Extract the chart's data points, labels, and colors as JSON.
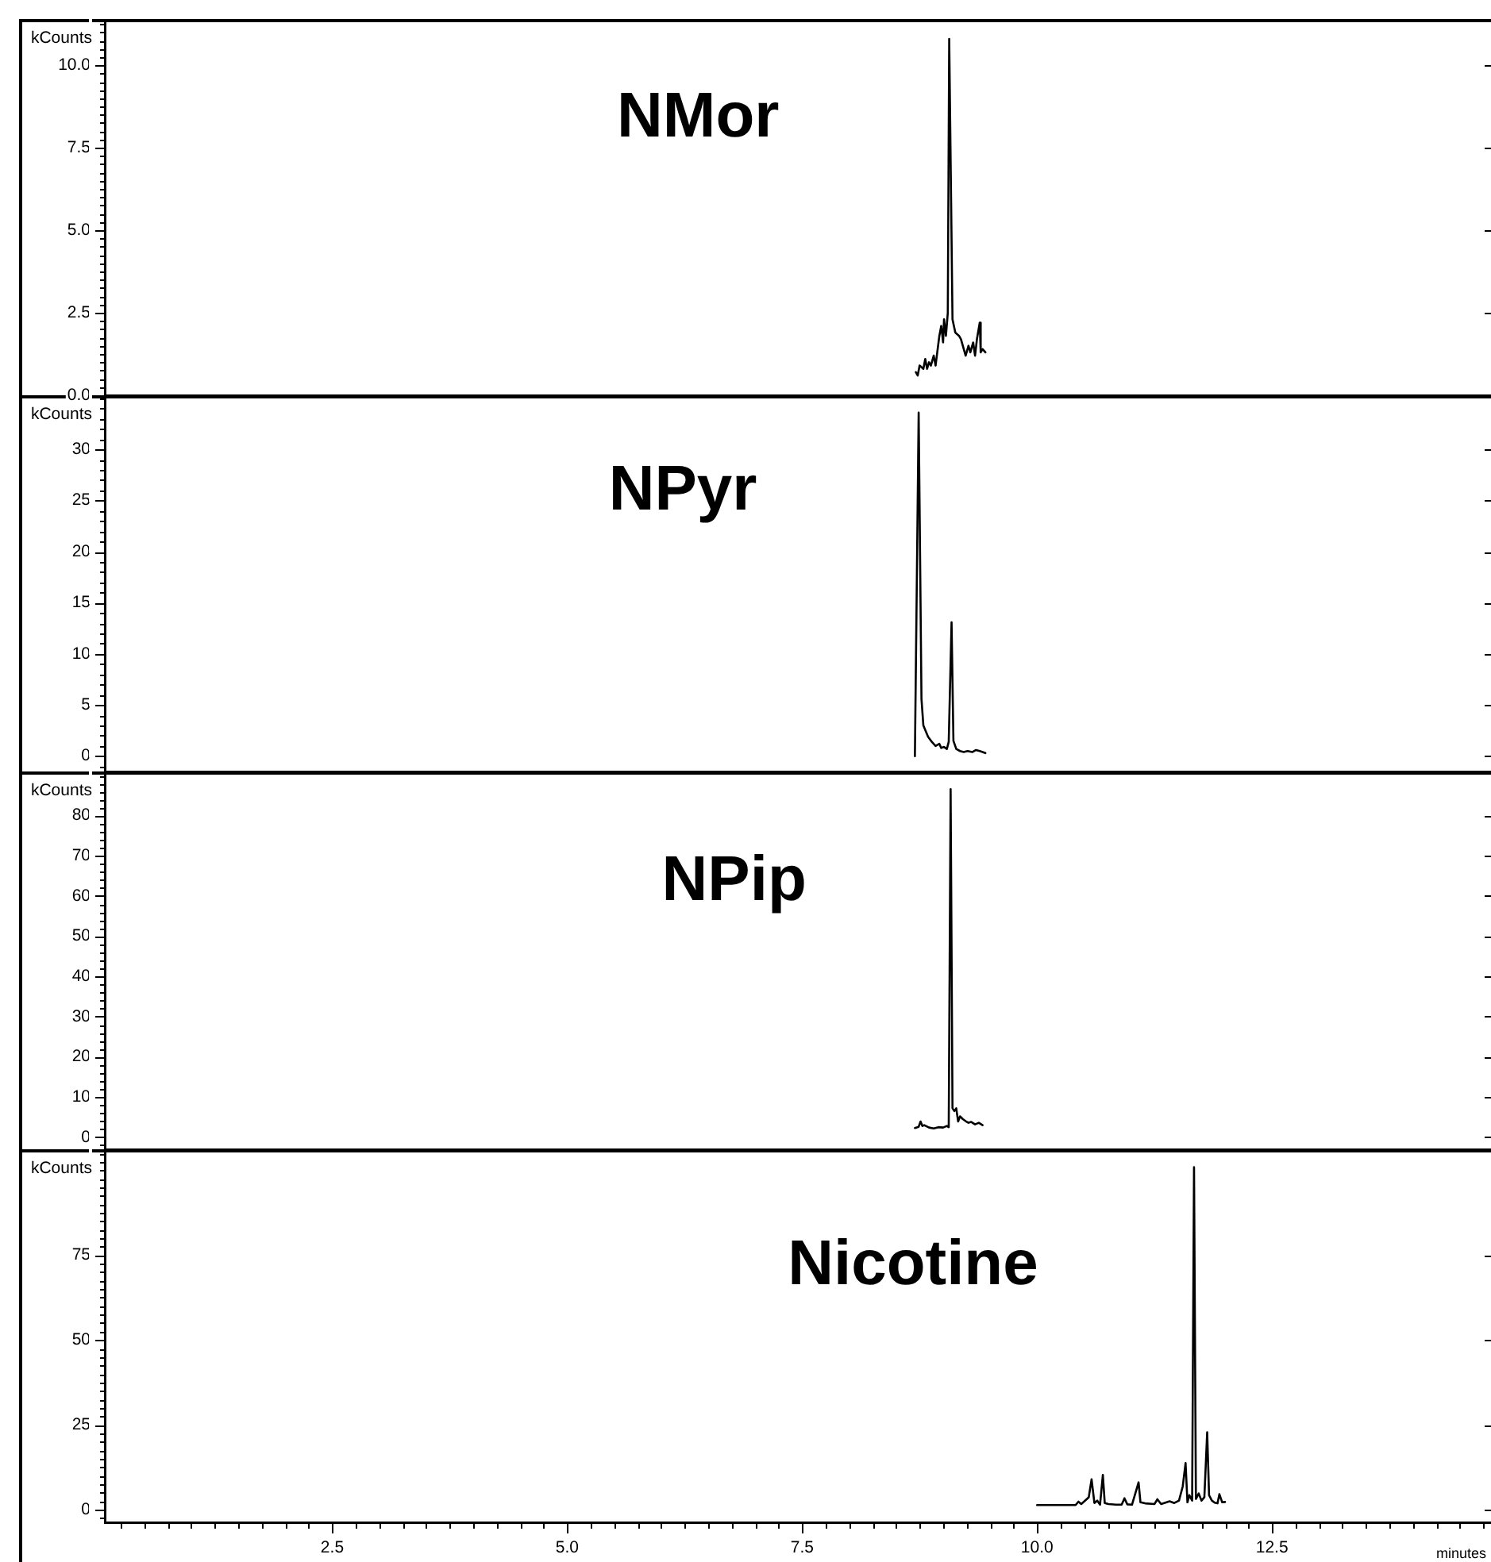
{
  "chart_data": [
    {
      "type": "line",
      "title": "NMor",
      "ylabel": "kCounts",
      "color": "#000000",
      "marker": "none",
      "tick_labels": "y",
      "xlim": [
        0.08,
        14.83
      ],
      "ylim": [
        0,
        11.4
      ],
      "yticks": [
        {
          "value": 0,
          "label": "0.0"
        },
        {
          "value": 0.25,
          "label": null
        },
        {
          "value": 0.5,
          "label": null
        },
        {
          "value": 0.75,
          "label": null
        },
        {
          "value": 1,
          "label": null
        },
        {
          "value": 1.25,
          "label": null
        },
        {
          "value": 1.5,
          "label": null
        },
        {
          "value": 1.75,
          "label": null
        },
        {
          "value": 2,
          "label": null
        },
        {
          "value": 2.25,
          "label": null
        },
        2.5,
        {
          "value": 2.75,
          "label": null
        },
        {
          "value": 3,
          "label": null
        },
        {
          "value": 3.25,
          "label": null
        },
        {
          "value": 3.5,
          "label": null
        },
        {
          "value": 3.75,
          "label": null
        },
        {
          "value": 4,
          "label": null
        },
        {
          "value": 4.25,
          "label": null
        },
        {
          "value": 4.5,
          "label": null
        },
        {
          "value": 4.75,
          "label": null
        },
        {
          "value": 5,
          "label": "5.0"
        },
        {
          "value": 5.25,
          "label": null
        },
        {
          "value": 5.5,
          "label": null
        },
        {
          "value": 5.75,
          "label": null
        },
        {
          "value": 6,
          "label": null
        },
        {
          "value": 6.25,
          "label": null
        },
        {
          "value": 6.5,
          "label": null
        },
        {
          "value": 6.75,
          "label": null
        },
        {
          "value": 7,
          "label": null
        },
        {
          "value": 7.25,
          "label": null
        },
        7.5,
        {
          "value": 7.75,
          "label": null
        },
        {
          "value": 8,
          "label": null
        },
        {
          "value": 8.25,
          "label": null
        },
        {
          "value": 8.5,
          "label": null
        },
        {
          "value": 8.75,
          "label": null
        },
        {
          "value": 9,
          "label": null
        },
        {
          "value": 9.25,
          "label": null
        },
        {
          "value": 9.5,
          "label": null
        },
        {
          "value": 9.75,
          "label": null
        },
        {
          "value": 10,
          "label": "10.0"
        },
        {
          "value": 10.25,
          "label": null
        },
        {
          "value": 10.5,
          "label": null
        },
        {
          "value": 10.75,
          "label": null
        },
        {
          "value": 11,
          "label": null
        },
        {
          "value": 11.25,
          "label": null
        }
      ],
      "x": [
        8.71,
        8.73,
        8.75,
        8.79,
        8.81,
        8.83,
        8.85,
        8.87,
        8.9,
        8.92,
        8.96,
        8.98,
        9.0,
        9.01,
        9.03,
        9.05,
        9.065,
        9.1,
        9.13,
        9.17,
        9.19,
        9.24,
        9.27,
        9.29,
        9.32,
        9.34,
        9.36,
        9.39,
        9.4,
        9.42,
        9.45
      ],
      "values": [
        0.7,
        0.6,
        0.9,
        0.8,
        1.1,
        0.8,
        1.0,
        0.9,
        1.2,
        0.9,
        1.8,
        2.1,
        1.6,
        2.3,
        1.8,
        2.5,
        10.8,
        2.3,
        1.9,
        1.8,
        1.7,
        1.2,
        1.5,
        1.3,
        1.6,
        1.2,
        1.7,
        2.2,
        1.3,
        1.4,
        1.3
      ]
    },
    {
      "type": "line",
      "title": "NPyr",
      "ylabel": "kCounts",
      "color": "#000000",
      "marker": "none",
      "tick_labels": "y",
      "xlim": [
        0.08,
        14.83
      ],
      "ylim": [
        -1.5,
        35.3
      ],
      "yticks": [
        {
          "value": -1,
          "label": null
        },
        0,
        {
          "value": 1,
          "label": null
        },
        {
          "value": 2,
          "label": null
        },
        {
          "value": 3,
          "label": null
        },
        {
          "value": 4,
          "label": null
        },
        5,
        {
          "value": 6,
          "label": null
        },
        {
          "value": 7,
          "label": null
        },
        {
          "value": 8,
          "label": null
        },
        {
          "value": 9,
          "label": null
        },
        10,
        {
          "value": 11,
          "label": null
        },
        {
          "value": 12,
          "label": null
        },
        {
          "value": 13,
          "label": null
        },
        {
          "value": 14,
          "label": null
        },
        15,
        {
          "value": 16,
          "label": null
        },
        {
          "value": 17,
          "label": null
        },
        {
          "value": 18,
          "label": null
        },
        {
          "value": 19,
          "label": null
        },
        20,
        {
          "value": 21,
          "label": null
        },
        {
          "value": 22,
          "label": null
        },
        {
          "value": 23,
          "label": null
        },
        {
          "value": 24,
          "label": null
        },
        25,
        {
          "value": 26,
          "label": null
        },
        {
          "value": 27,
          "label": null
        },
        {
          "value": 28,
          "label": null
        },
        {
          "value": 29,
          "label": null
        },
        30,
        {
          "value": 31,
          "label": null
        },
        {
          "value": 32,
          "label": null
        },
        {
          "value": 33,
          "label": null
        },
        {
          "value": 34,
          "label": null
        },
        {
          "value": 35,
          "label": null
        }
      ],
      "x": [
        8.7,
        8.74,
        8.77,
        8.79,
        8.84,
        8.88,
        8.92,
        8.96,
        8.98,
        9.01,
        9.04,
        9.06,
        9.09,
        9.11,
        9.14,
        9.18,
        9.22,
        9.26,
        9.31,
        9.35,
        9.39,
        9.45
      ],
      "values": [
        0,
        33.6,
        5.6,
        3.0,
        1.9,
        1.4,
        1.0,
        1.2,
        0.8,
        0.9,
        0.7,
        1.4,
        13.1,
        1.5,
        0.7,
        0.5,
        0.4,
        0.5,
        0.4,
        0.6,
        0.5,
        0.3
      ]
    },
    {
      "type": "line",
      "title": "NPip",
      "ylabel": "kCounts",
      "color": "#000000",
      "marker": "none",
      "tick_labels": "y",
      "xlim": [
        0.08,
        14.83
      ],
      "ylim": [
        -3,
        91
      ],
      "yticks": [
        {
          "value": -2,
          "label": null
        },
        0,
        {
          "value": 2,
          "label": null
        },
        {
          "value": 4,
          "label": null
        },
        {
          "value": 6,
          "label": null
        },
        {
          "value": 8,
          "label": null
        },
        10,
        {
          "value": 12,
          "label": null
        },
        {
          "value": 14,
          "label": null
        },
        {
          "value": 16,
          "label": null
        },
        {
          "value": 18,
          "label": null
        },
        20,
        {
          "value": 22,
          "label": null
        },
        {
          "value": 24,
          "label": null
        },
        {
          "value": 26,
          "label": null
        },
        {
          "value": 28,
          "label": null
        },
        30,
        {
          "value": 32,
          "label": null
        },
        {
          "value": 34,
          "label": null
        },
        {
          "value": 36,
          "label": null
        },
        {
          "value": 38,
          "label": null
        },
        40,
        {
          "value": 42,
          "label": null
        },
        {
          "value": 44,
          "label": null
        },
        {
          "value": 46,
          "label": null
        },
        {
          "value": 48,
          "label": null
        },
        50,
        {
          "value": 52,
          "label": null
        },
        {
          "value": 54,
          "label": null
        },
        {
          "value": 56,
          "label": null
        },
        {
          "value": 58,
          "label": null
        },
        60,
        {
          "value": 62,
          "label": null
        },
        {
          "value": 64,
          "label": null
        },
        {
          "value": 66,
          "label": null
        },
        {
          "value": 68,
          "label": null
        },
        70,
        {
          "value": 72,
          "label": null
        },
        {
          "value": 74,
          "label": null
        },
        {
          "value": 76,
          "label": null
        },
        {
          "value": 78,
          "label": null
        },
        80,
        {
          "value": 82,
          "label": null
        },
        {
          "value": 84,
          "label": null
        },
        {
          "value": 86,
          "label": null
        },
        {
          "value": 88,
          "label": null
        },
        {
          "value": 90,
          "label": null
        }
      ],
      "x": [
        8.7,
        8.74,
        8.76,
        8.78,
        8.8,
        8.85,
        8.9,
        8.95,
        9.0,
        9.04,
        9.06,
        9.08,
        9.1,
        9.12,
        9.14,
        9.16,
        9.18,
        9.21,
        9.24,
        9.27,
        9.3,
        9.34,
        9.38,
        9.42
      ],
      "values": [
        2.3,
        2.6,
        3.9,
        2.8,
        3.0,
        2.4,
        2.2,
        2.5,
        2.4,
        2.8,
        2.5,
        86.6,
        7.2,
        6.5,
        7.2,
        3.9,
        5.2,
        4.5,
        4.0,
        3.6,
        3.8,
        3.2,
        3.6,
        3.0
      ]
    },
    {
      "type": "line",
      "title": "Nicotine",
      "ylabel": "kCounts",
      "xlabel": "minutes",
      "color": "#000000",
      "marker": "none",
      "xlim": [
        0.08,
        14.83
      ],
      "ylim": [
        -3.8,
        106.3
      ],
      "xticks": [
        {
          "value": 0.25,
          "label": null
        },
        {
          "value": 0.5,
          "label": null
        },
        {
          "value": 0.75,
          "label": null
        },
        {
          "value": 1,
          "label": null
        },
        {
          "value": 1.25,
          "label": null
        },
        {
          "value": 1.5,
          "label": null
        },
        {
          "value": 1.75,
          "label": null
        },
        {
          "value": 2,
          "label": null
        },
        {
          "value": 2.25,
          "label": null
        },
        2.5,
        {
          "value": 2.75,
          "label": null
        },
        {
          "value": 3,
          "label": null
        },
        {
          "value": 3.25,
          "label": null
        },
        {
          "value": 3.5,
          "label": null
        },
        {
          "value": 3.75,
          "label": null
        },
        {
          "value": 4,
          "label": null
        },
        {
          "value": 4.25,
          "label": null
        },
        {
          "value": 4.5,
          "label": null
        },
        {
          "value": 4.75,
          "label": null
        },
        {
          "value": 5,
          "label": "5.0"
        },
        {
          "value": 5.25,
          "label": null
        },
        {
          "value": 5.5,
          "label": null
        },
        {
          "value": 5.75,
          "label": null
        },
        {
          "value": 6,
          "label": null
        },
        {
          "value": 6.25,
          "label": null
        },
        {
          "value": 6.5,
          "label": null
        },
        {
          "value": 6.75,
          "label": null
        },
        {
          "value": 7,
          "label": null
        },
        {
          "value": 7.25,
          "label": null
        },
        7.5,
        {
          "value": 7.75,
          "label": null
        },
        {
          "value": 8,
          "label": null
        },
        {
          "value": 8.25,
          "label": null
        },
        {
          "value": 8.5,
          "label": null
        },
        {
          "value": 8.75,
          "label": null
        },
        {
          "value": 9,
          "label": null
        },
        {
          "value": 9.25,
          "label": null
        },
        {
          "value": 9.5,
          "label": null
        },
        {
          "value": 9.75,
          "label": null
        },
        {
          "value": 10,
          "label": "10.0"
        },
        {
          "value": 10.25,
          "label": null
        },
        {
          "value": 10.5,
          "label": null
        },
        {
          "value": 10.75,
          "label": null
        },
        {
          "value": 11,
          "label": null
        },
        {
          "value": 11.25,
          "label": null
        },
        {
          "value": 11.5,
          "label": null
        },
        {
          "value": 11.75,
          "label": null
        },
        {
          "value": 12,
          "label": null
        },
        {
          "value": 12.25,
          "label": null
        },
        12.5,
        {
          "value": 12.75,
          "label": null
        },
        {
          "value": 13,
          "label": null
        },
        {
          "value": 13.25,
          "label": null
        },
        {
          "value": 13.5,
          "label": null
        },
        {
          "value": 13.75,
          "label": null
        },
        {
          "value": 14,
          "label": null
        },
        {
          "value": 14.25,
          "label": null
        },
        {
          "value": 14.5,
          "label": null
        },
        {
          "value": 14.75,
          "label": null
        }
      ],
      "yticks": [
        {
          "value": -2.5,
          "label": null
        },
        0,
        {
          "value": 2.5,
          "label": null
        },
        {
          "value": 5,
          "label": null
        },
        {
          "value": 7.5,
          "label": null
        },
        {
          "value": 10,
          "label": null
        },
        {
          "value": 12.5,
          "label": null
        },
        {
          "value": 15,
          "label": null
        },
        {
          "value": 17.5,
          "label": null
        },
        {
          "value": 20,
          "label": null
        },
        {
          "value": 22.5,
          "label": null
        },
        25,
        {
          "value": 27.5,
          "label": null
        },
        {
          "value": 30,
          "label": null
        },
        {
          "value": 32.5,
          "label": null
        },
        {
          "value": 35,
          "label": null
        },
        {
          "value": 37.5,
          "label": null
        },
        {
          "value": 40,
          "label": null
        },
        {
          "value": 42.5,
          "label": null
        },
        {
          "value": 45,
          "label": null
        },
        {
          "value": 47.5,
          "label": null
        },
        50,
        {
          "value": 52.5,
          "label": null
        },
        {
          "value": 55,
          "label": null
        },
        {
          "value": 57.5,
          "label": null
        },
        {
          "value": 60,
          "label": null
        },
        {
          "value": 62.5,
          "label": null
        },
        {
          "value": 65,
          "label": null
        },
        {
          "value": 67.5,
          "label": null
        },
        {
          "value": 70,
          "label": null
        },
        {
          "value": 72.5,
          "label": null
        },
        75,
        {
          "value": 77.5,
          "label": null
        },
        {
          "value": 80,
          "label": null
        },
        {
          "value": 82.5,
          "label": null
        },
        {
          "value": 85,
          "label": null
        },
        {
          "value": 87.5,
          "label": null
        },
        {
          "value": 90,
          "label": null
        },
        {
          "value": 92.5,
          "label": null
        },
        {
          "value": 95,
          "label": null
        },
        {
          "value": 97.5,
          "label": null
        },
        {
          "value": 100,
          "label": null
        },
        {
          "value": 102.5,
          "label": null
        },
        {
          "value": 105,
          "label": null
        }
      ],
      "x": [
        10.0,
        10.41,
        10.44,
        10.47,
        10.55,
        10.58,
        10.61,
        10.64,
        10.67,
        10.7,
        10.72,
        10.76,
        10.84,
        10.9,
        10.93,
        10.96,
        11.01,
        11.08,
        11.1,
        11.15,
        11.25,
        11.28,
        11.32,
        11.41,
        11.46,
        11.51,
        11.55,
        11.58,
        11.6,
        11.62,
        11.65,
        11.67,
        11.69,
        11.72,
        11.75,
        11.78,
        11.81,
        11.83,
        11.86,
        11.89,
        11.92,
        11.94,
        11.97,
        12.0
      ],
      "values": [
        1.3,
        1.3,
        2.3,
        1.6,
        3.6,
        8.9,
        1.9,
        2.6,
        1.4,
        10.2,
        1.9,
        1.6,
        1.4,
        1.4,
        3.3,
        1.5,
        1.4,
        8.0,
        2.1,
        1.8,
        1.6,
        3.0,
        1.6,
        2.4,
        1.9,
        2.6,
        6.8,
        13.7,
        2.1,
        4.2,
        2.6,
        101,
        3.1,
        4.7,
        2.6,
        3.6,
        22.8,
        4.2,
        2.6,
        2.0,
        1.8,
        4.5,
        2.1,
        2.2
      ]
    }
  ]
}
